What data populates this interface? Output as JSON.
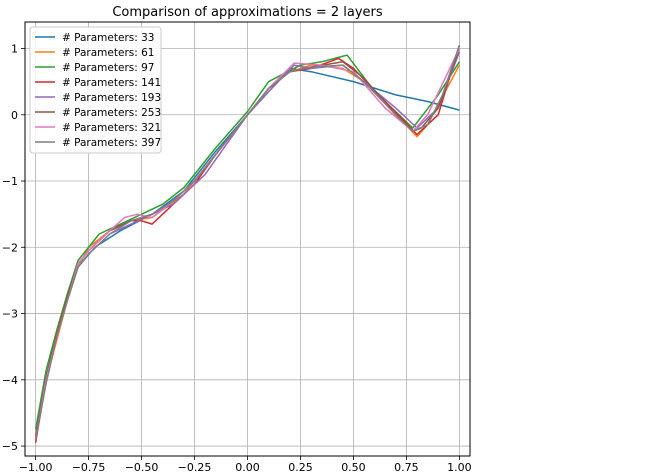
{
  "chart_data": {
    "type": "line",
    "title": "Comparison of approximations = 2 layers",
    "xlabel": "",
    "ylabel": "",
    "xlim": [
      -1.05,
      1.05
    ],
    "ylim": [
      -5.15,
      1.4
    ],
    "x_ticks": [
      -1.0,
      -0.75,
      -0.5,
      -0.25,
      0.0,
      0.25,
      0.5,
      0.75,
      1.0
    ],
    "x_tick_labels": [
      "−1.00",
      "−0.75",
      "−0.50",
      "−0.25",
      "0.00",
      "0.25",
      "0.50",
      "0.75",
      "1.00"
    ],
    "y_ticks": [
      -5,
      -4,
      -3,
      -2,
      -1,
      0,
      1
    ],
    "y_tick_labels": [
      "−5",
      "−4",
      "−3",
      "−2",
      "−1",
      "0",
      "1"
    ],
    "grid": true,
    "legend_position": "top-left",
    "series": [
      {
        "name": "# Parameters: 33",
        "color": "#1f77b4",
        "x": [
          -1.0,
          -0.95,
          -0.9,
          -0.85,
          -0.8,
          -0.72,
          -0.6,
          -0.45,
          -0.3,
          -0.15,
          0.0,
          0.1,
          0.2,
          0.3,
          0.5,
          0.7,
          0.85,
          1.0
        ],
        "y": [
          -4.85,
          -4.0,
          -3.3,
          -2.75,
          -2.3,
          -2.0,
          -1.75,
          -1.5,
          -1.15,
          -0.55,
          0.0,
          0.35,
          0.7,
          0.65,
          0.5,
          0.3,
          0.2,
          0.07
        ]
      },
      {
        "name": "# Parameters: 61",
        "color": "#ff7f0e",
        "x": [
          -1.0,
          -0.95,
          -0.9,
          -0.85,
          -0.8,
          -0.75,
          -0.65,
          -0.55,
          -0.45,
          -0.3,
          -0.15,
          0.0,
          0.1,
          0.2,
          0.3,
          0.45,
          0.55,
          0.7,
          0.8,
          0.85,
          1.0
        ],
        "y": [
          -4.9,
          -4.0,
          -3.4,
          -2.8,
          -2.3,
          -2.0,
          -1.75,
          -1.6,
          -1.55,
          -1.2,
          -0.6,
          0.0,
          0.4,
          0.65,
          0.75,
          0.7,
          0.5,
          0.0,
          -0.33,
          -0.15,
          0.75
        ]
      },
      {
        "name": "# Parameters: 97",
        "color": "#2ca02c",
        "x": [
          -1.0,
          -0.95,
          -0.9,
          -0.85,
          -0.8,
          -0.7,
          -0.6,
          -0.5,
          -0.4,
          -0.3,
          -0.15,
          0.0,
          0.1,
          0.25,
          0.35,
          0.47,
          0.6,
          0.78,
          0.9,
          1.0
        ],
        "y": [
          -4.75,
          -3.85,
          -3.25,
          -2.7,
          -2.2,
          -1.8,
          -1.65,
          -1.5,
          -1.35,
          -1.1,
          -0.5,
          0.05,
          0.5,
          0.75,
          0.8,
          0.9,
          0.35,
          -0.2,
          0.3,
          0.8
        ]
      },
      {
        "name": "# Parameters: 141",
        "color": "#d62728",
        "x": [
          -1.0,
          -0.95,
          -0.9,
          -0.85,
          -0.8,
          -0.75,
          -0.65,
          -0.55,
          -0.5,
          -0.45,
          -0.35,
          -0.25,
          -0.15,
          0.0,
          0.1,
          0.2,
          0.3,
          0.43,
          0.5,
          0.65,
          0.8,
          0.9,
          1.0
        ],
        "y": [
          -4.95,
          -4.0,
          -3.3,
          -2.75,
          -2.25,
          -2.05,
          -1.75,
          -1.6,
          -1.6,
          -1.65,
          -1.35,
          -1.05,
          -0.6,
          0.0,
          0.4,
          0.65,
          0.7,
          0.85,
          0.7,
          0.2,
          -0.3,
          0.0,
          1.05
        ]
      },
      {
        "name": "# Parameters: 193",
        "color": "#9467bd",
        "x": [
          -1.0,
          -0.95,
          -0.9,
          -0.85,
          -0.8,
          -0.75,
          -0.65,
          -0.55,
          -0.45,
          -0.35,
          -0.2,
          -0.1,
          0.0,
          0.1,
          0.22,
          0.3,
          0.45,
          0.55,
          0.7,
          0.8,
          0.9,
          1.0
        ],
        "y": [
          -4.9,
          -4.0,
          -3.35,
          -2.8,
          -2.3,
          -2.1,
          -1.8,
          -1.65,
          -1.5,
          -1.35,
          -0.9,
          -0.45,
          0.0,
          0.35,
          0.75,
          0.7,
          0.75,
          0.5,
          0.1,
          -0.2,
          0.1,
          0.95
        ]
      },
      {
        "name": "# Parameters: 253",
        "color": "#8c564b",
        "x": [
          -1.0,
          -0.95,
          -0.9,
          -0.85,
          -0.8,
          -0.75,
          -0.65,
          -0.55,
          -0.45,
          -0.35,
          -0.25,
          -0.15,
          0.0,
          0.1,
          0.2,
          0.3,
          0.45,
          0.55,
          0.7,
          0.78,
          0.82,
          0.9,
          1.0
        ],
        "y": [
          -4.85,
          -3.95,
          -3.3,
          -2.75,
          -2.25,
          -2.05,
          -1.75,
          -1.6,
          -1.5,
          -1.3,
          -1.0,
          -0.6,
          0.0,
          0.4,
          0.65,
          0.72,
          0.8,
          0.55,
          0.0,
          -0.25,
          -0.2,
          0.1,
          1.0
        ]
      },
      {
        "name": "# Parameters: 321",
        "color": "#e377c2",
        "x": [
          -1.0,
          -0.95,
          -0.9,
          -0.85,
          -0.8,
          -0.75,
          -0.65,
          -0.58,
          -0.52,
          -0.45,
          -0.35,
          -0.25,
          -0.1,
          0.0,
          0.1,
          0.22,
          0.35,
          0.5,
          0.65,
          0.78,
          0.85,
          1.0
        ],
        "y": [
          -4.9,
          -4.0,
          -3.35,
          -2.8,
          -2.25,
          -2.05,
          -1.75,
          -1.55,
          -1.5,
          -1.55,
          -1.3,
          -1.0,
          -0.4,
          0.0,
          0.4,
          0.78,
          0.75,
          0.65,
          0.1,
          -0.25,
          0.0,
          1.0
        ]
      },
      {
        "name": "# Parameters: 397",
        "color": "#7f7f7f",
        "x": [
          -1.0,
          -0.95,
          -0.9,
          -0.85,
          -0.8,
          -0.75,
          -0.65,
          -0.55,
          -0.45,
          -0.35,
          -0.25,
          -0.15,
          0.0,
          0.1,
          0.2,
          0.3,
          0.45,
          0.55,
          0.7,
          0.78,
          0.85,
          0.92,
          1.0
        ],
        "y": [
          -4.9,
          -4.05,
          -3.35,
          -2.8,
          -2.3,
          -2.1,
          -1.8,
          -1.6,
          -1.5,
          -1.3,
          -1.0,
          -0.6,
          0.0,
          0.4,
          0.65,
          0.72,
          0.75,
          0.5,
          0.0,
          -0.25,
          -0.15,
          0.3,
          1.05
        ]
      }
    ]
  }
}
